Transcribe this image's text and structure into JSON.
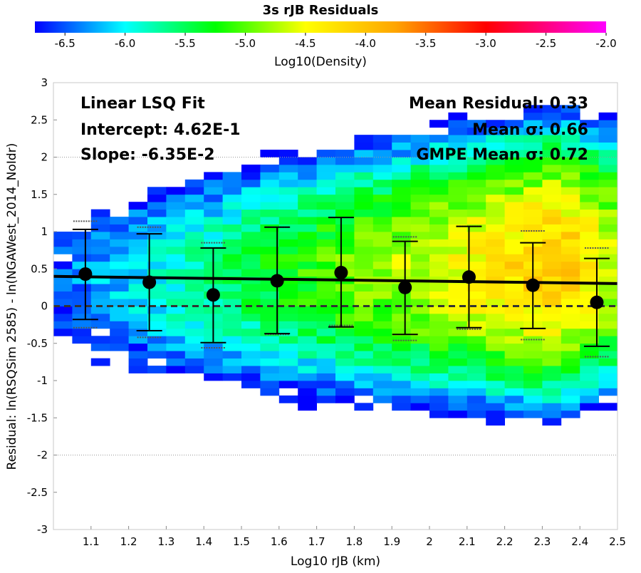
{
  "chart_data": {
    "type": "heatmap",
    "title": "3s rJB Residuals",
    "xlabel": "Log10 rJB (km)",
    "ylabel": "Residual: ln(RSQSim 2585) - ln(NGAWest_2014_NoIdr)",
    "xlim": [
      1.0,
      2.5
    ],
    "ylim": [
      -3,
      3
    ],
    "x_ticks": [
      "1.1",
      "1.2",
      "1.3",
      "1.4",
      "1.5",
      "1.6",
      "1.7",
      "1.8",
      "1.9",
      "2",
      "2.1",
      "2.2",
      "2.3",
      "2.4",
      "2.5"
    ],
    "y_ticks": [
      "-3",
      "-2.5",
      "-2",
      "-1.5",
      "-1",
      "-0.5",
      "0",
      "0.5",
      "1",
      "1.5",
      "2",
      "2.5",
      "3"
    ],
    "grid": "horizontal dotted at -2 and 2",
    "colorbar": {
      "label": "Log10(Density)",
      "range": [
        -6.75,
        -2.0
      ],
      "ticks": [
        "-6.5",
        "-6.0",
        "-5.5",
        "-5.0",
        "-4.5",
        "-4.0",
        "-3.5",
        "-3.0",
        "-2.5",
        "-2.0"
      ],
      "colors": [
        "#0000ff",
        "#00ffff",
        "#00ff00",
        "#ffff00",
        "#ffa500",
        "#ff0000",
        "#ff00ff"
      ]
    },
    "binned_means": {
      "x": [
        1.085,
        1.255,
        1.425,
        1.595,
        1.765,
        1.935,
        2.105,
        2.275,
        2.445
      ],
      "mean": [
        0.43,
        0.32,
        0.15,
        0.34,
        0.45,
        0.25,
        0.39,
        0.28,
        0.05
      ],
      "err_high": [
        1.03,
        0.97,
        0.78,
        1.06,
        1.19,
        0.87,
        1.07,
        0.85,
        0.64
      ],
      "err_low": [
        -0.18,
        -0.33,
        -0.49,
        -0.37,
        -0.28,
        -0.38,
        -0.29,
        -0.3,
        -0.54
      ],
      "gmpe_high": [
        1.14,
        1.06,
        0.85,
        1.06,
        1.19,
        0.93,
        1.07,
        1.01,
        0.78
      ],
      "gmpe_low": [
        -0.29,
        -0.42,
        -0.56,
        -0.38,
        -0.26,
        -0.46,
        -0.31,
        -0.45,
        -0.68
      ]
    },
    "fit_line": {
      "x": [
        1.0,
        2.5
      ],
      "y": [
        0.399,
        0.303
      ]
    },
    "zero_line": 0
  },
  "annotations": {
    "fit_title": "Linear LSQ Fit",
    "intercept": "Intercept: 4.62E-1",
    "slope": "Slope: -6.35E-2",
    "mean_residual": "Mean Residual: 0.33",
    "mean_sigma": "Mean σ: 0.66",
    "gmpe_sigma": "GMPE Mean σ: 0.72"
  }
}
